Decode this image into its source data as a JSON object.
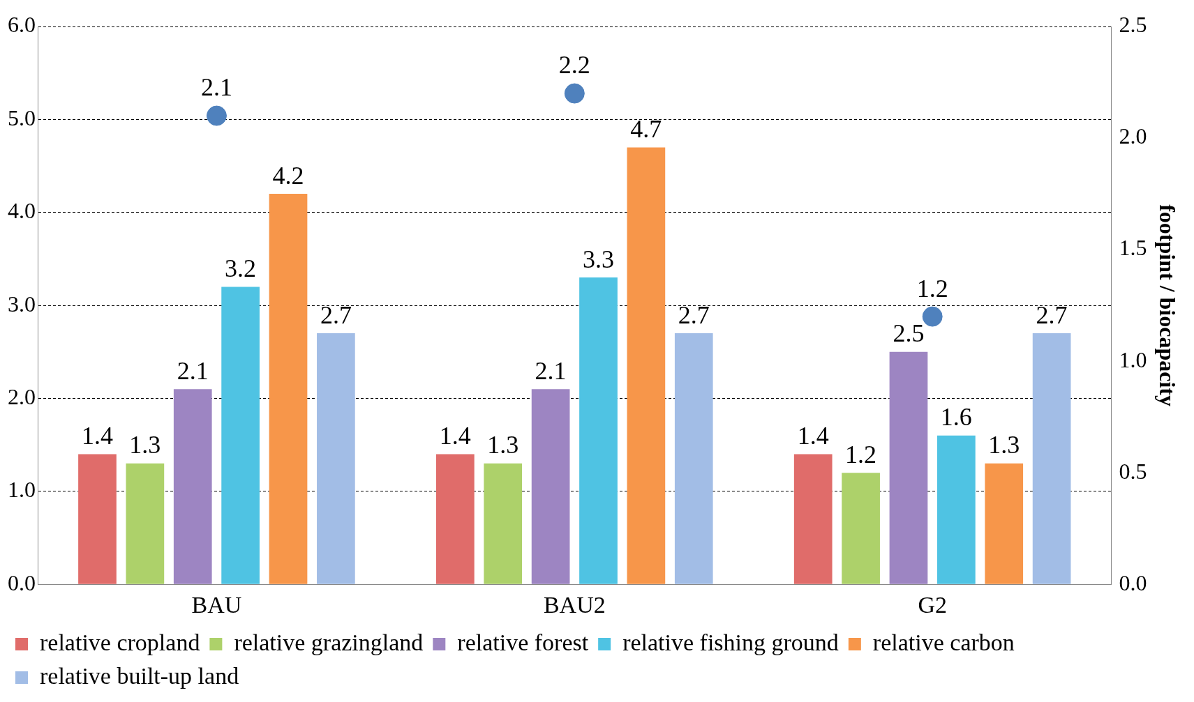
{
  "chart_data": {
    "type": "bar",
    "categories": [
      "BAU",
      "BAU2",
      "G2"
    ],
    "series": [
      {
        "name": "relative cropland",
        "color": "#e06c6a",
        "values": [
          1.4,
          1.4,
          1.4
        ]
      },
      {
        "name": "relative grazingland",
        "color": "#add16a",
        "values": [
          1.3,
          1.3,
          1.2
        ]
      },
      {
        "name": "relative forest",
        "color": "#9d85c2",
        "values": [
          2.1,
          2.1,
          2.5
        ]
      },
      {
        "name": "relative fishing ground",
        "color": "#4fc3e3",
        "values": [
          3.2,
          3.3,
          1.6
        ]
      },
      {
        "name": "relative carbon",
        "color": "#f7964a",
        "values": [
          4.2,
          4.7,
          1.3
        ]
      },
      {
        "name": "relative built-up land",
        "color": "#a2bde6",
        "values": [
          2.7,
          2.7,
          2.7
        ]
      },
      {
        "type": "scatter",
        "axis": "y2",
        "color": "#4f81bd",
        "x": [
          "BAU",
          "BAU2",
          "G2"
        ],
        "values": [
          2.1,
          2.2,
          1.2
        ]
      }
    ],
    "ylim": [
      0,
      6
    ],
    "yticks": [
      {
        "value": 0,
        "label": "0.0"
      },
      {
        "value": 1,
        "label": "1.0"
      },
      {
        "value": 2,
        "label": "2.0"
      },
      {
        "value": 3,
        "label": "3.0"
      },
      {
        "value": 4,
        "label": "4.0"
      },
      {
        "value": 5,
        "label": "5.0"
      },
      {
        "value": 6,
        "label": "6.0"
      }
    ],
    "y2lim": [
      0,
      2.5
    ],
    "y2ticks": [
      {
        "value": 0,
        "label": "0.0"
      },
      {
        "value": 0.5,
        "label": "0.5"
      },
      {
        "value": 1,
        "label": "1.0"
      },
      {
        "value": 1.5,
        "label": "1.5"
      },
      {
        "value": 2,
        "label": "2.0"
      },
      {
        "value": 2.5,
        "label": "2.5"
      }
    ],
    "y2label": "footpint / biocapacity",
    "grid": "y",
    "legend": "bottom",
    "data_labels": true,
    "marker": "circle"
  }
}
